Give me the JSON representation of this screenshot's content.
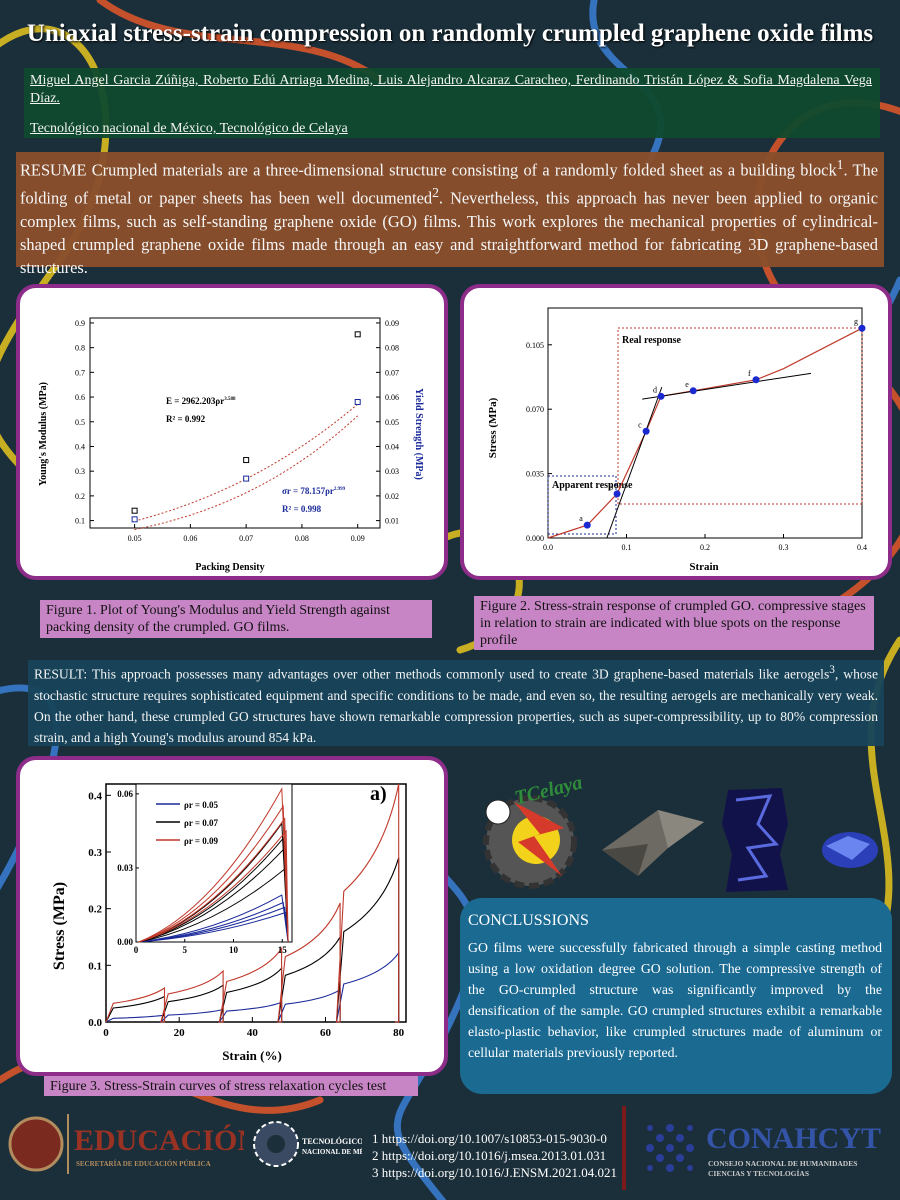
{
  "title": "Uniaxial stress-strain compression on randomly crumpled graphene oxide films",
  "authors": "Miguel Angel Garcia Zúñiga, Roberto Edú Arriaga Medina, Luis Alejandro Alcaraz Caracheo, Ferdinando Tristán López & Sofia Magdalena Vega Díaz.",
  "affiliation": "Tecnológico nacional de México, Tecnológico de Celaya",
  "resume": {
    "lead": "RESUME Crumpled materials are a three-dimensional structure consisting of a randomly folded sheet as a building block",
    "sup1": "1",
    "mid": ". The folding of metal or paper sheets has been well documented",
    "sup2": "2",
    "rest": ". Nevertheless, this approach has never been applied to organic complex films, such as self-standing graphene oxide (GO) films.  This work explores the mechanical properties of cylindrical-shaped crumpled graphene oxide films made through an easy and straightforward method for fabricating 3D graphene-based structures."
  },
  "fig1": {
    "caption": "Figure 1. Plot of Young's Modulus and Yield Strength against packing density of the crumpled. GO films.",
    "xlabel": "Packing Density",
    "ylabel_left": "Young's Modulus (MPa)",
    "ylabel_right": "Yield Strength (MPa)",
    "eq1": "E = 2962.203ρr",
    "eq1_exp": "3.588",
    "r2_1": "R² = 0.992",
    "eq2": "σr = 78.157ρr",
    "eq2_exp": "2.999",
    "r2_2": "R² = 0.998",
    "xticks": [
      "0.05",
      "0.06",
      "0.07",
      "0.08",
      "0.09"
    ],
    "yticks_left": [
      "0.1",
      "0.2",
      "0.3",
      "0.4",
      "0.5",
      "0.6",
      "0.7",
      "0.8",
      "0.9"
    ],
    "yticks_right": [
      "0.01",
      "0.02",
      "0.03",
      "0.04",
      "0.05",
      "0.06",
      "0.07",
      "0.08",
      "0.09"
    ]
  },
  "fig2": {
    "caption": "Figure 2. Stress-strain response of crumpled GO. compressive stages in relation to strain are indicated with blue spots on the response profile",
    "xlabel": "Strain",
    "ylabel": "Stress (MPa)",
    "box_real": "Real response",
    "box_apparent": "Apparent response",
    "xticks": [
      "0.0",
      "0.1",
      "0.2",
      "0.3",
      "0.4"
    ],
    "yticks": [
      "0.000",
      "0.035",
      "0.070",
      "0.105"
    ],
    "points": [
      {
        "label": "a",
        "x": 0.05,
        "y": 0.007
      },
      {
        "label": "b",
        "x": 0.088,
        "y": 0.024
      },
      {
        "label": "c",
        "x": 0.125,
        "y": 0.058
      },
      {
        "label": "d",
        "x": 0.144,
        "y": 0.077
      },
      {
        "label": "e",
        "x": 0.185,
        "y": 0.08
      },
      {
        "label": "f",
        "x": 0.265,
        "y": 0.086
      },
      {
        "label": "g",
        "x": 0.4,
        "y": 0.114
      }
    ]
  },
  "fig3": {
    "caption": "Figure 3. Stress-Strain curves of stress relaxation cycles test",
    "panel_label": "a)",
    "xlabel": "Strain (%)",
    "ylabel": "Stress (MPa)",
    "xticks": [
      "0",
      "20",
      "40",
      "60",
      "80"
    ],
    "yticks": [
      "0.0",
      "0.1",
      "0.2",
      "0.3",
      "0.4"
    ],
    "inset_xticks": [
      "0",
      "5",
      "10",
      "15"
    ],
    "inset_yticks": [
      "0.00",
      "0.03",
      "0.06"
    ],
    "legend": [
      "ρr = 0.05",
      "ρr = 0.07",
      "ρr = 0.09"
    ]
  },
  "chart_data": [
    {
      "type": "scatter",
      "x": [
        0.05,
        0.07,
        0.09
      ],
      "series": [
        {
          "name": "E",
          "axis": "left",
          "values": [
            0.14,
            0.345,
            0.854
          ]
        },
        {
          "name": "σr",
          "axis": "right",
          "values": [
            0.0105,
            0.027,
            0.058
          ]
        }
      ],
      "xlim": [
        0.042,
        0.094
      ],
      "ylim_left": [
        0.07,
        0.92
      ],
      "ylim_right": [
        0.007,
        0.092
      ]
    },
    {
      "type": "line",
      "x": [
        0.0,
        0.05,
        0.088,
        0.125,
        0.144,
        0.185,
        0.265,
        0.3,
        0.4
      ],
      "values": [
        0.0,
        0.007,
        0.024,
        0.058,
        0.077,
        0.08,
        0.086,
        0.092,
        0.114
      ],
      "xlim": [
        0,
        0.4
      ],
      "ylim": [
        0,
        0.125
      ]
    },
    {
      "type": "line",
      "series_peaks": [
        {
          "name": "ρr = 0.05",
          "strain": [
            16,
            32,
            48,
            64,
            80
          ],
          "stress": [
            0.012,
            0.022,
            0.035,
            0.057,
            0.122
          ]
        },
        {
          "name": "ρr = 0.07",
          "strain": [
            16,
            32,
            48,
            64,
            80
          ],
          "stress": [
            0.045,
            0.065,
            0.095,
            0.15,
            0.29
          ]
        },
        {
          "name": "ρr = 0.09",
          "strain": [
            16,
            32,
            48,
            64,
            80
          ],
          "stress": [
            0.06,
            0.09,
            0.13,
            0.21,
            0.42
          ]
        }
      ],
      "xlim": [
        0,
        82
      ],
      "ylim": [
        0,
        0.42
      ]
    }
  ],
  "result": {
    "lead": "RESULT: This approach possesses many advantages over other methods commonly used to create 3D graphene-based materials like aerogels",
    "sup": "3",
    "rest": ", whose stochastic structure requires sophisticated equipment and specific conditions to be made, and even so, the resulting aerogels are mechanically very weak. On the other hand, these crumpled GO structures have shown remarkable compression properties, such as super-compressibility, up to 80% compression strain, and a high Young's modulus around 854 kPa."
  },
  "conclusions": {
    "heading": "CONCLUSSIONS",
    "text": "GO films were successfully fabricated through a simple casting method using a low oxidation degree GO solution. The compressive strength of the GO-crumpled structure was significantly improved by the densification of the sample. GO crumpled structures exhibit a remarkable elasto-plastic behavior, like crumpled structures made of aluminum or cellular materials previously reported."
  },
  "refs": [
    {
      "n": "1",
      "url": "https://doi.org/10.1007/s10853-015-9030-0"
    },
    {
      "n": "2",
      "url": "https://doi.org/10.1016/j.msea.2013.01.031"
    },
    {
      "n": "3",
      "url": "https://doi.org/10.1016/J.ENSM.2021.04.021"
    }
  ],
  "logos": {
    "educacion": "EDUCACIÓN",
    "sep": "SECRETARÍA DE EDUCACIÓN PÚBLICA",
    "tecnm1": "TECNOLÓGICO",
    "tecnm2": "NACIONAL DE MÉXICO",
    "conahcyt": "CONAHCYT",
    "conahcyt_sub1": "CONSEJO NACIONAL DE HUMANIDADES",
    "conahcyt_sub2": "CIENCIAS Y TECNOLOGÍAS",
    "celaya": "TCelaya"
  }
}
